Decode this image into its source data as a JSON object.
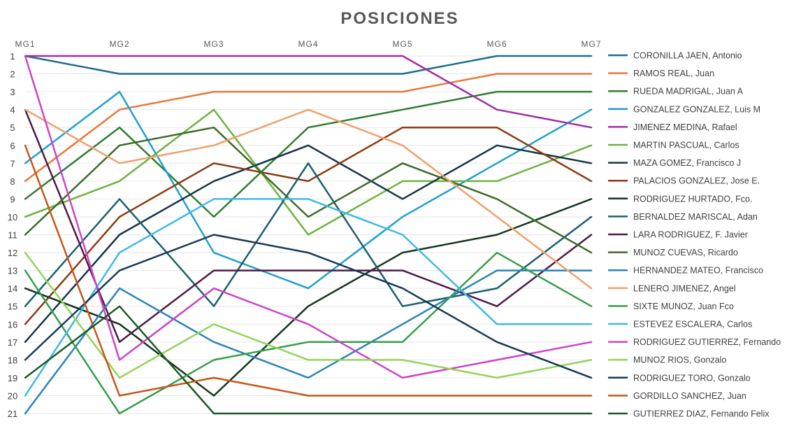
{
  "chart_data": {
    "type": "line",
    "title": "POSICIONES",
    "x": [
      "MG1",
      "MG2",
      "MG3",
      "MG4",
      "MG5",
      "MG6",
      "MG7"
    ],
    "yticks": [
      1,
      2,
      3,
      4,
      5,
      6,
      7,
      8,
      9,
      10,
      11,
      12,
      13,
      14,
      15,
      16,
      17,
      18,
      19,
      20,
      21
    ],
    "ylim": [
      21,
      1
    ],
    "y_inverted": true,
    "grid": "horizontal",
    "legend_position": "right",
    "series": [
      {
        "name": "CORONILLA JAEN, Antonio",
        "color": "#1f6e8c",
        "values": [
          1,
          2,
          2,
          2,
          2,
          1,
          1
        ]
      },
      {
        "name": "RAMOS REAL, Juan",
        "color": "#e8773a",
        "values": [
          8,
          4,
          3,
          3,
          3,
          2,
          2
        ]
      },
      {
        "name": "RUEDA MADRIGAL, Juan A",
        "color": "#2e7d32",
        "values": [
          9,
          5,
          10,
          5,
          4,
          3,
          3
        ]
      },
      {
        "name": "GONZALEZ GONZALEZ, Luis M",
        "color": "#1ea0d2",
        "values": [
          7,
          3,
          12,
          14,
          10,
          7,
          4
        ]
      },
      {
        "name": "JIMENEZ MEDINA, Rafael",
        "color": "#a02ea8",
        "values": [
          1,
          1,
          1,
          1,
          1,
          4,
          5
        ]
      },
      {
        "name": "MARTIN PASCUAL, Carlos",
        "color": "#6db33f",
        "values": [
          10,
          8,
          4,
          11,
          8,
          8,
          6
        ]
      },
      {
        "name": "MAZA GOMEZ, Francisco J",
        "color": "#15344a",
        "values": [
          17,
          11,
          8,
          6,
          9,
          6,
          7
        ]
      },
      {
        "name": "PALACIOS GONZALEZ, Jose E.",
        "color": "#8b3a12",
        "values": [
          16,
          10,
          7,
          8,
          5,
          5,
          8
        ]
      },
      {
        "name": "RODRIGUEZ HURTADO, Fco.",
        "color": "#13361c",
        "values": [
          14,
          16,
          20,
          15,
          12,
          11,
          9
        ]
      },
      {
        "name": "BERNALDEZ MARISCAL, Adan",
        "color": "#1a5f6e",
        "values": [
          15,
          9,
          15,
          7,
          15,
          14,
          10
        ]
      },
      {
        "name": "LARA RODRIGUEZ, F. Javier",
        "color": "#4e1a45",
        "values": [
          4,
          17,
          13,
          13,
          13,
          15,
          11
        ]
      },
      {
        "name": "MUNOZ CUEVAS, Ricardo",
        "color": "#3c6b28",
        "values": [
          11,
          6,
          5,
          10,
          7,
          9,
          12
        ]
      },
      {
        "name": "HERNANDEZ MATEO, Francisco",
        "color": "#2a84b8",
        "values": [
          21,
          14,
          17,
          19,
          16,
          13,
          13
        ]
      },
      {
        "name": "LENERO JIMENEZ, Angel",
        "color": "#f0a06a",
        "values": [
          4,
          7,
          6,
          4,
          6,
          10,
          14
        ]
      },
      {
        "name": "SIXTE MUNOZ, Juan Fco",
        "color": "#35a048",
        "values": [
          13,
          21,
          18,
          17,
          17,
          12,
          15
        ]
      },
      {
        "name": "ESTEVEZ ESCALERA, Carlos",
        "color": "#3fb9e6",
        "values": [
          20,
          12,
          9,
          9,
          11,
          16,
          16
        ]
      },
      {
        "name": "RODRIGUEZ GUTIERREZ, Fernando",
        "color": "#cc44c8",
        "values": [
          1,
          18,
          14,
          16,
          19,
          18,
          17
        ]
      },
      {
        "name": "MUNOZ RIOS, Gonzalo",
        "color": "#94d35a",
        "values": [
          12,
          19,
          16,
          18,
          18,
          19,
          18
        ]
      },
      {
        "name": "RODRIGUEZ TORO, Gonzalo",
        "color": "#173a56",
        "values": [
          18,
          13,
          11,
          12,
          14,
          17,
          19
        ]
      },
      {
        "name": "GORDILLO SANCHEZ, Juan",
        "color": "#c8561a",
        "values": [
          6,
          20,
          19,
          20,
          20,
          20,
          20
        ]
      },
      {
        "name": "GUTIERREZ DIAZ, Fernando Felix",
        "color": "#1c5a26",
        "values": [
          19,
          15,
          21,
          21,
          21,
          21,
          21
        ]
      }
    ]
  }
}
